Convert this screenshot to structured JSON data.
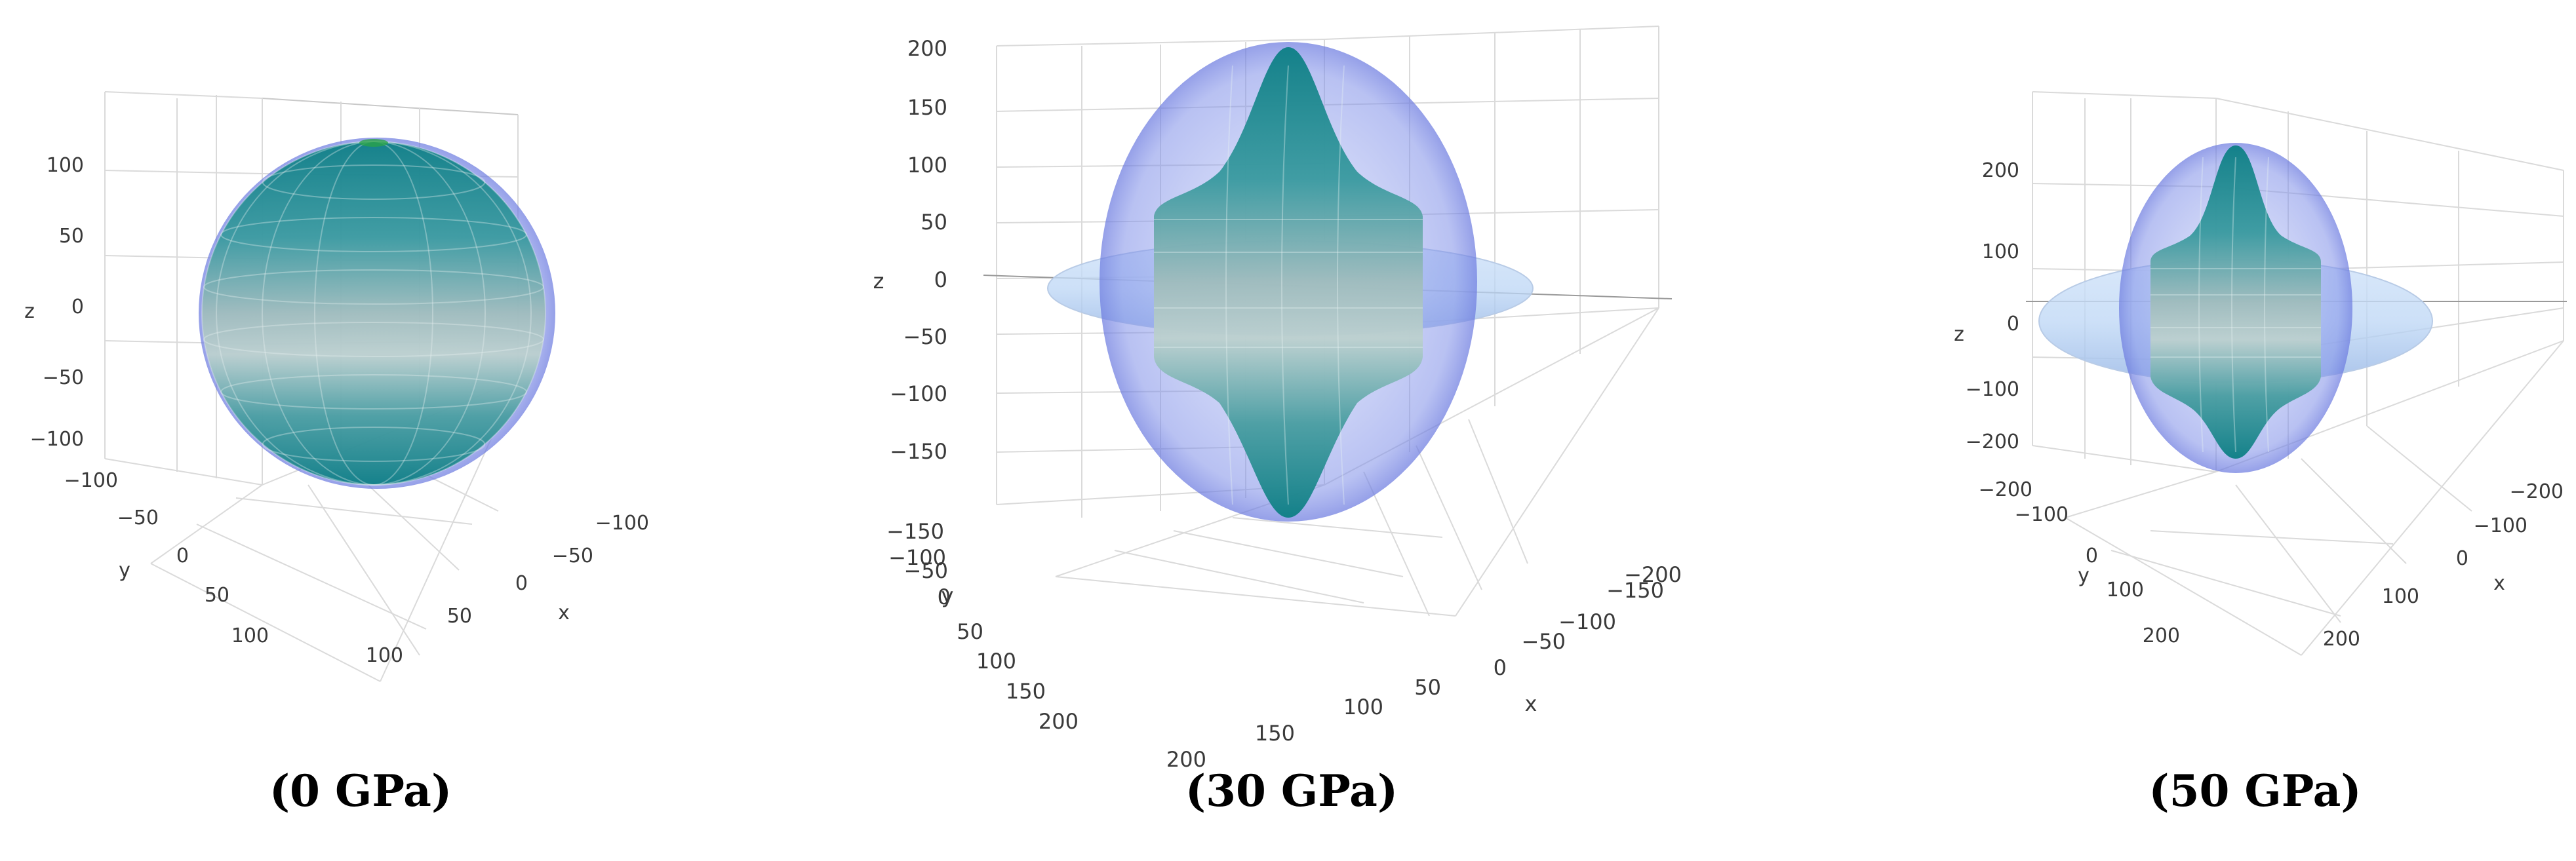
{
  "chart_data": [
    {
      "type": "3d-surface",
      "caption": "(0 GPa)",
      "axes": {
        "z": {
          "label": "z",
          "ticks": [
            "100",
            "50",
            "0",
            "−50",
            "−100"
          ]
        },
        "y": {
          "label": "y",
          "ticks": [
            "−100",
            "−50",
            "0",
            "50",
            "100"
          ]
        },
        "x": {
          "label": "x",
          "ticks": [
            "−100",
            "−50",
            "0",
            "50",
            "100"
          ]
        }
      },
      "surfaces": {
        "outer": "near-spherical",
        "inner": "near-spherical"
      },
      "colors": {
        "outer": "#7f8fe8",
        "inner_top": "#0e7f86",
        "inner_mid": "#9fbcbd"
      }
    },
    {
      "type": "3d-surface",
      "caption": "(30 GPa)",
      "axes": {
        "z": {
          "label": "z",
          "ticks": [
            "200",
            "150",
            "100",
            "50",
            "0",
            "−50",
            "−100",
            "−150"
          ]
        },
        "y": {
          "label": "y",
          "ticks": [
            "−150",
            "−100",
            "−50",
            "0",
            "50",
            "100",
            "150",
            "200"
          ]
        },
        "x": {
          "label": "x",
          "ticks": [
            "−200",
            "−150",
            "−100",
            "−50",
            "0",
            "50",
            "100",
            "150",
            "200"
          ]
        }
      },
      "surfaces": {
        "outer": "prolate ellipsoid with equatorial disc",
        "inner": "peanut-shaped"
      },
      "colors": {
        "outer": "#7f8fe8",
        "inner_top": "#0e7f86",
        "inner_mid": "#9fbcbd",
        "disc": "#bcd6f5"
      }
    },
    {
      "type": "3d-surface",
      "caption": "(50 GPa)",
      "axes": {
        "z": {
          "label": "z",
          "ticks": [
            "200",
            "100",
            "0",
            "−100",
            "−200"
          ]
        },
        "y": {
          "label": "y",
          "ticks": [
            "−200",
            "−100",
            "0",
            "100",
            "200"
          ]
        },
        "x": {
          "label": "x",
          "ticks": [
            "−200",
            "−100",
            "0",
            "100",
            "200"
          ]
        }
      },
      "surfaces": {
        "outer": "prolate ellipsoid with equatorial disc",
        "inner": "peanut-shaped"
      },
      "colors": {
        "outer": "#7f8fe8",
        "inner_top": "#0e7f86",
        "inner_mid": "#9fbcbd",
        "disc": "#bcd6f5"
      }
    }
  ]
}
